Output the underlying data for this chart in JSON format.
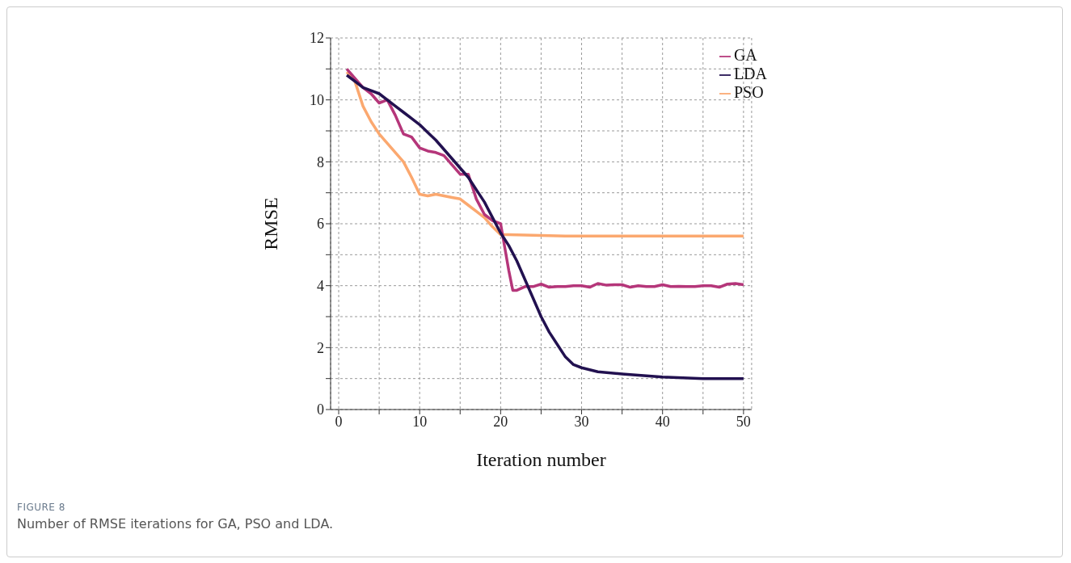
{
  "chart_data": {
    "type": "line",
    "xlabel": "Iteration number",
    "ylabel": "RMSE",
    "xlim": [
      -1,
      51
    ],
    "xticks": [
      0,
      {
        "value": 5,
        "label": null
      },
      10,
      {
        "value": 15,
        "label": null
      },
      20,
      {
        "value": 25,
        "label": null
      },
      30,
      {
        "value": 35,
        "label": null
      },
      40,
      {
        "value": 45,
        "label": null
      },
      50
    ],
    "ylim": [
      0,
      12
    ],
    "yticks": [
      0,
      {
        "value": 1,
        "label": null
      },
      2,
      {
        "value": 3,
        "label": null
      },
      4,
      {
        "value": 5,
        "label": null
      },
      6,
      {
        "value": 7,
        "label": null
      },
      8,
      {
        "value": 9,
        "label": null
      },
      10,
      {
        "value": 11,
        "label": null
      },
      12
    ],
    "grid": true,
    "legend": "top right",
    "marker": "none",
    "line_style": "solid",
    "series": [
      {
        "name": "PSO",
        "color": "#fba86f",
        "x": [
          1,
          2,
          3,
          4,
          5,
          6,
          7,
          8,
          9,
          10,
          11,
          12,
          13,
          14,
          15,
          16,
          17,
          18,
          19,
          20,
          21,
          25,
          28,
          50
        ],
        "values": [
          10.9,
          10.6,
          9.8,
          9.3,
          8.9,
          8.6,
          8.3,
          8.0,
          7.5,
          6.95,
          6.9,
          6.95,
          6.9,
          6.85,
          6.8,
          6.6,
          6.4,
          6.2,
          5.9,
          5.65,
          5.65,
          5.62,
          5.6,
          5.6
        ]
      },
      {
        "name": "GA",
        "color": "#b5367a",
        "x": [
          1,
          2,
          3,
          4,
          5,
          6,
          7,
          8,
          9,
          10,
          11,
          12,
          13,
          14,
          15,
          16,
          17,
          18,
          19,
          20,
          21,
          21.5,
          22,
          23,
          24,
          25,
          26,
          27,
          28,
          29,
          30,
          31,
          32,
          33,
          34,
          35,
          36,
          37,
          38,
          39,
          40,
          41,
          42,
          43,
          44,
          45,
          46,
          47,
          48,
          49,
          50
        ],
        "values": [
          11.0,
          10.7,
          10.4,
          10.2,
          9.9,
          10.0,
          9.5,
          8.9,
          8.8,
          8.45,
          8.35,
          8.3,
          8.2,
          7.9,
          7.6,
          7.6,
          6.8,
          6.3,
          6.1,
          6.0,
          4.5,
          3.85,
          3.85,
          3.97,
          3.97,
          4.05,
          3.95,
          3.97,
          3.97,
          4.0,
          4.0,
          3.95,
          4.07,
          4.02,
          4.03,
          4.03,
          3.95,
          4.0,
          3.97,
          3.97,
          4.03,
          3.97,
          3.98,
          3.97,
          3.97,
          4.0,
          4.0,
          3.95,
          4.05,
          4.07,
          4.03
        ]
      },
      {
        "name": "LDA",
        "color": "#221150",
        "x": [
          1,
          2,
          3,
          4,
          5,
          6,
          7,
          8,
          9,
          10,
          11,
          12,
          13,
          14,
          15,
          16,
          17,
          18,
          19,
          20,
          21,
          22,
          23,
          24,
          25,
          26,
          27,
          28,
          29,
          30,
          32,
          35,
          40,
          45,
          50
        ],
        "values": [
          10.8,
          10.6,
          10.4,
          10.3,
          10.2,
          10.0,
          9.8,
          9.6,
          9.4,
          9.2,
          8.95,
          8.7,
          8.4,
          8.1,
          7.8,
          7.5,
          7.1,
          6.7,
          6.2,
          5.7,
          5.3,
          4.8,
          4.2,
          3.6,
          3.0,
          2.5,
          2.1,
          1.7,
          1.45,
          1.35,
          1.22,
          1.15,
          1.05,
          1.0,
          1.0
        ]
      }
    ],
    "annotations": [
      "FIGURE 8",
      "Number of RMSE iterations for GA, PSO and LDA."
    ]
  }
}
